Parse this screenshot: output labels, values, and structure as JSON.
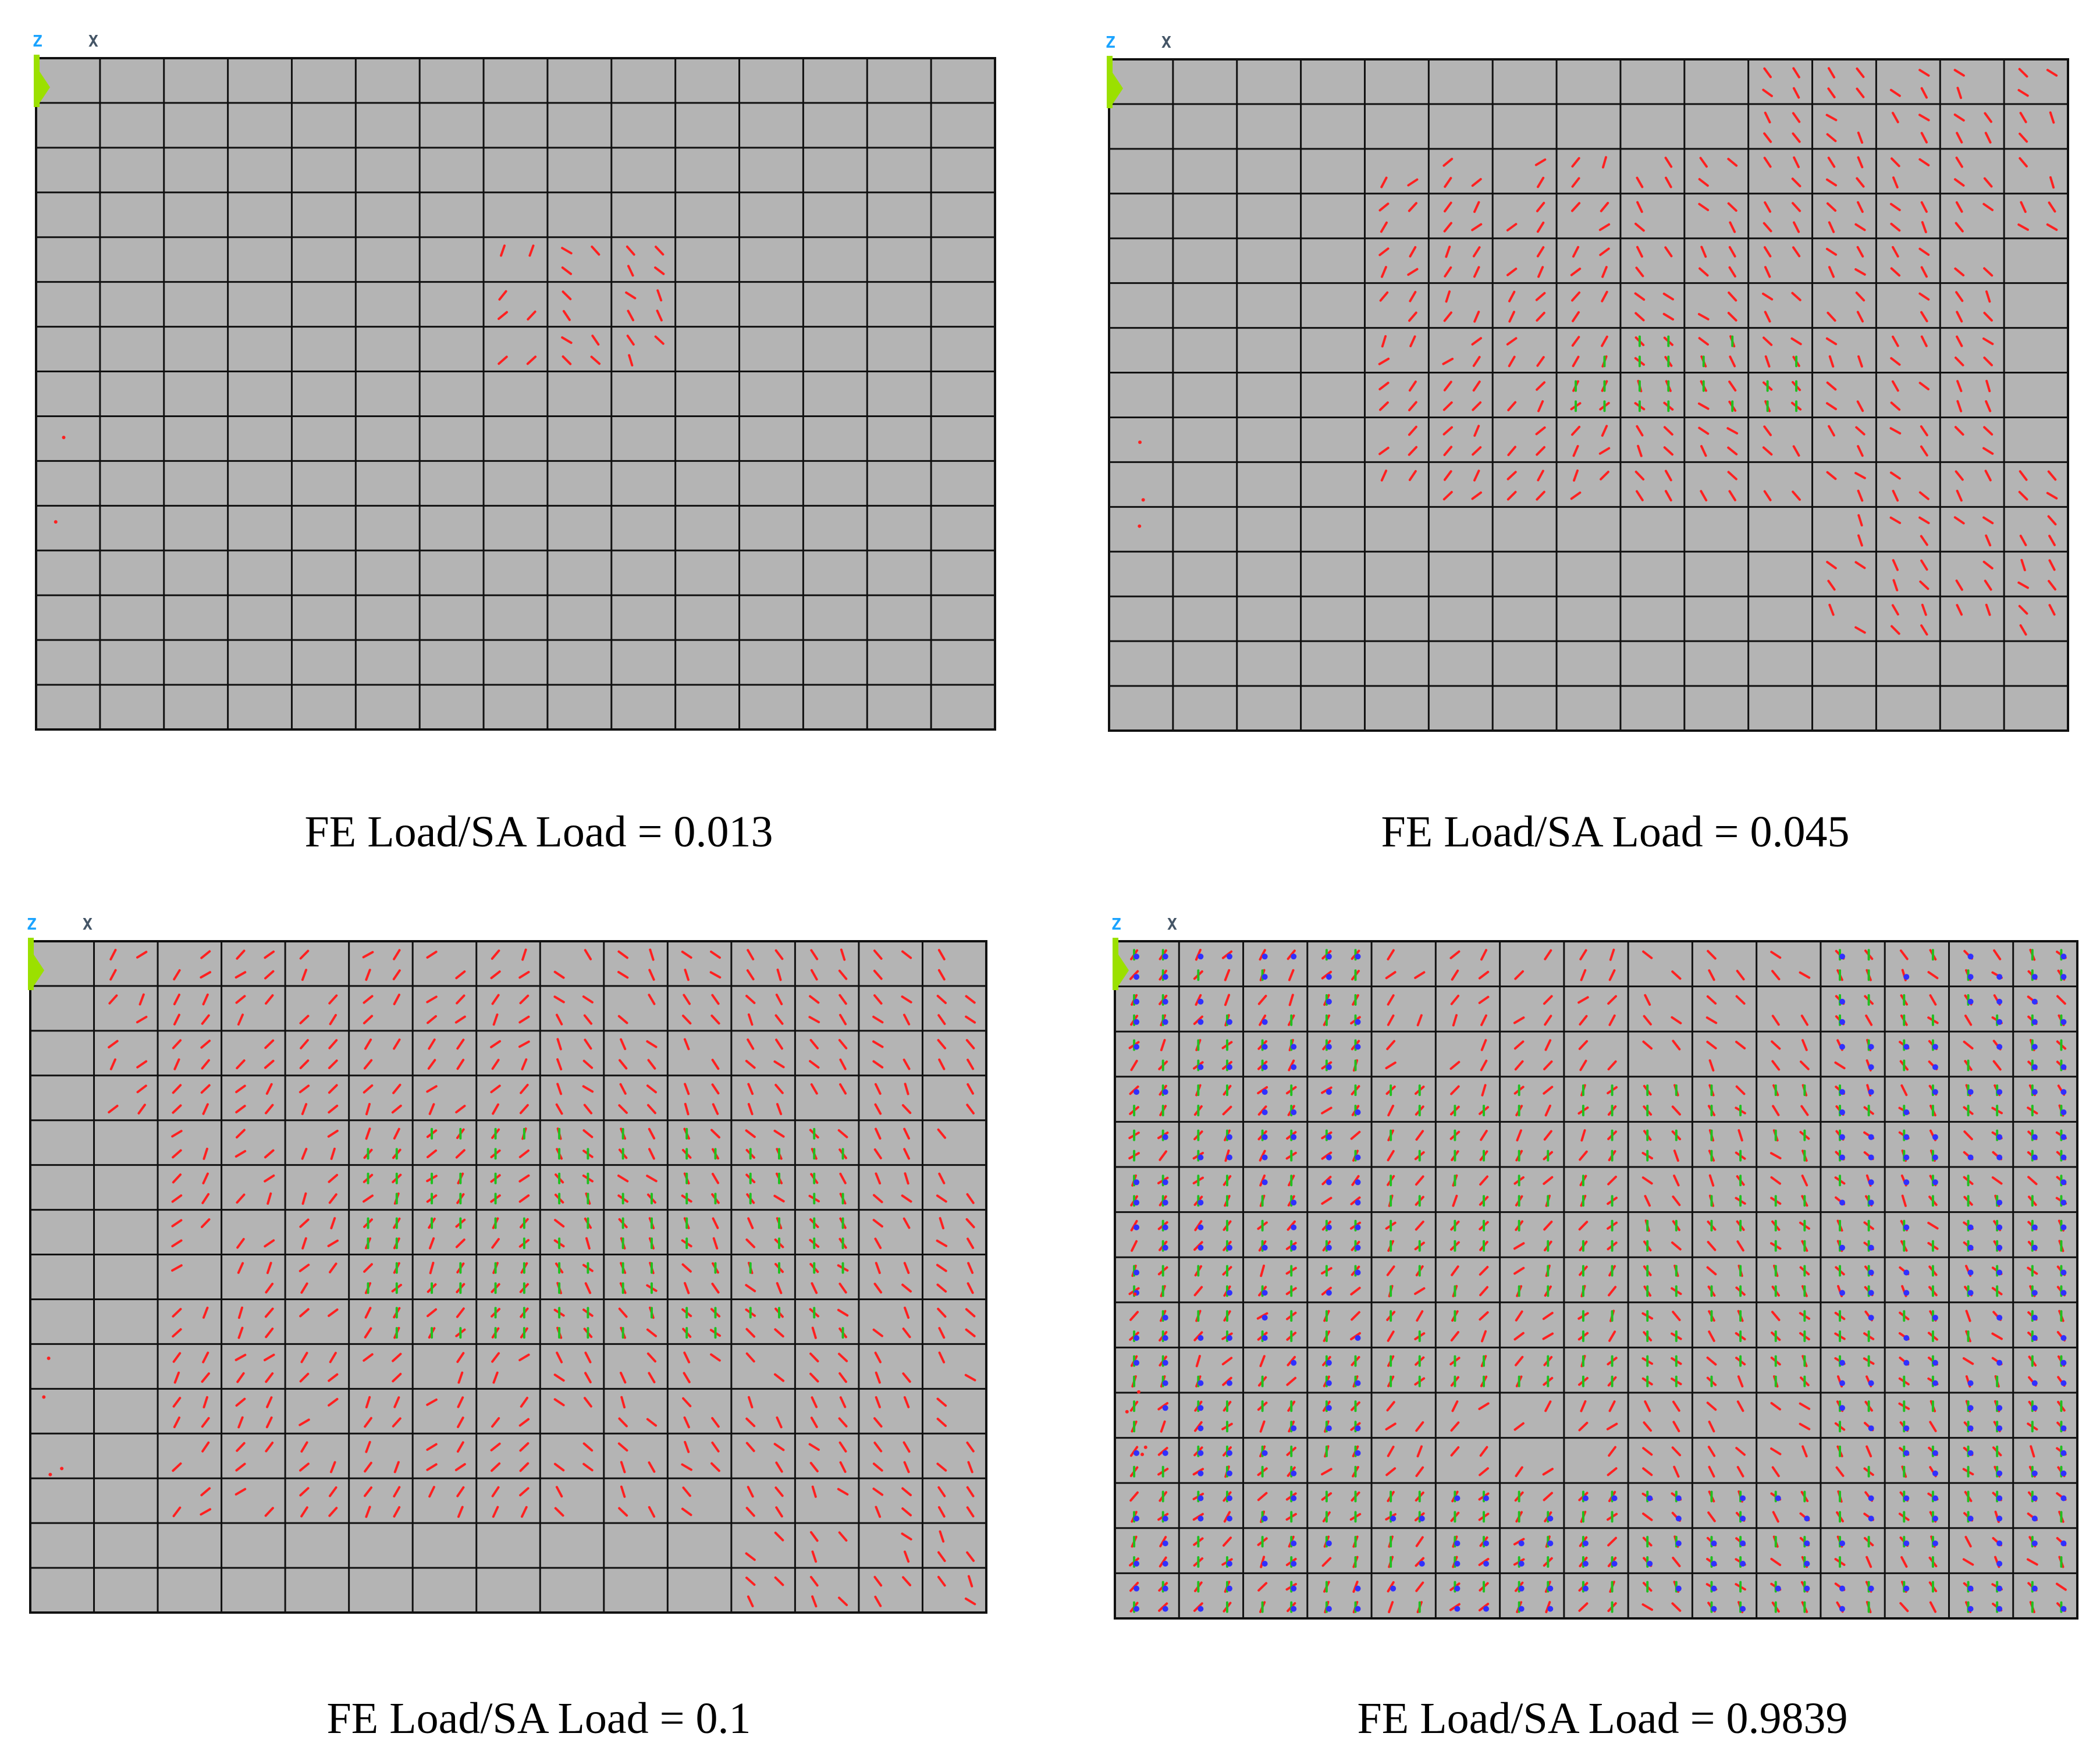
{
  "figure": {
    "panels": [
      {
        "caption": "FE Load/SA Load = 0.013",
        "triad": {
          "z_label": "Z",
          "x_label": "X"
        },
        "mesh": {
          "cols": 15,
          "rows": 15
        },
        "crack_density": "sparse"
      },
      {
        "caption": "FE Load/SA Load = 0.045",
        "triad": {
          "z_label": "Z",
          "x_label": "X"
        },
        "mesh": {
          "cols": 15,
          "rows": 15
        },
        "crack_density": "moderate"
      },
      {
        "caption": "FE Load/SA Load = 0.1",
        "triad": {
          "z_label": "Z",
          "x_label": "X"
        },
        "mesh": {
          "cols": 15,
          "rows": 15
        },
        "crack_density": "dense"
      },
      {
        "caption": "FE Load/SA Load = 0.9839",
        "triad": {
          "z_label": "Z",
          "x_label": "X"
        },
        "mesh": {
          "cols": 15,
          "rows": 15
        },
        "crack_density": "very dense"
      }
    ],
    "colors": {
      "mesh_fill": "#b4b4b4",
      "mesh_line": "#111111",
      "crack_first": "#ff2020",
      "crack_second": "#20c020",
      "crush": "#3030ff",
      "triad_z": "#1aa3ff",
      "support": "#9be000"
    }
  }
}
